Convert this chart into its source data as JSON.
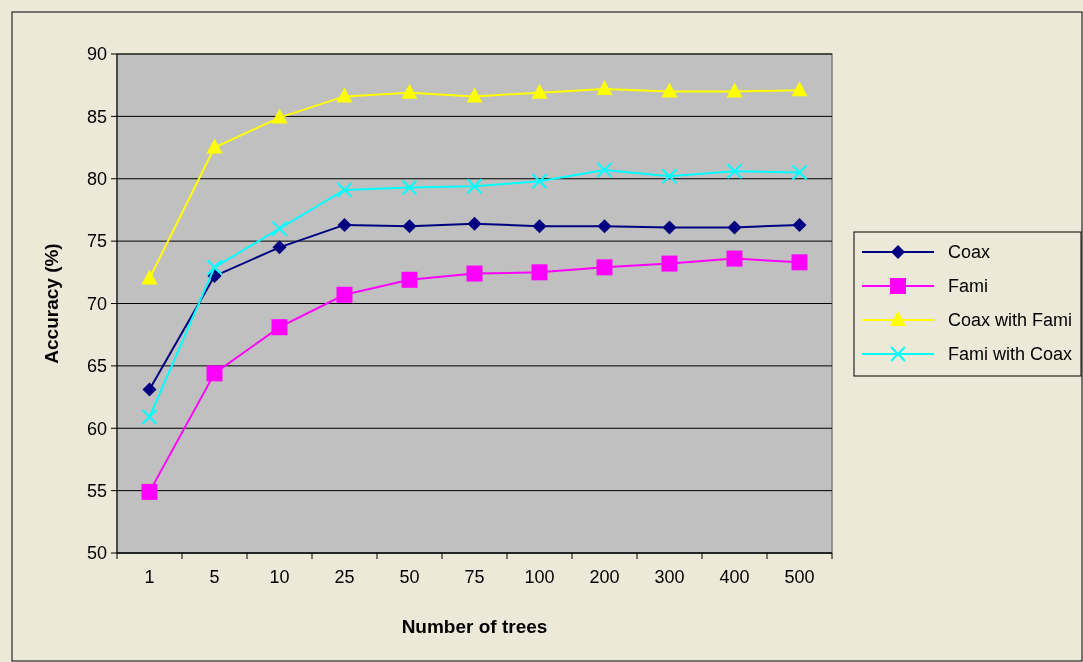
{
  "chart_data": {
    "type": "line",
    "xlabel": "Number of trees",
    "ylabel": "Accuracy (%)",
    "categories": [
      "1",
      "5",
      "10",
      "25",
      "50",
      "75",
      "100",
      "200",
      "300",
      "400",
      "500"
    ],
    "ylim": [
      50,
      90
    ],
    "yticks": [
      50,
      55,
      60,
      65,
      70,
      75,
      80,
      85,
      90
    ],
    "grid": "y",
    "legend": "right",
    "series": [
      {
        "name": "Coax",
        "color": "#000080",
        "marker": "diamond",
        "values": [
          63.1,
          72.2,
          74.5,
          76.3,
          76.2,
          76.4,
          76.2,
          76.2,
          76.1,
          76.1,
          76.3
        ]
      },
      {
        "name": "Fami",
        "color": "#ff00ff",
        "marker": "square",
        "values": [
          54.9,
          64.4,
          68.1,
          70.7,
          71.9,
          72.4,
          72.5,
          72.9,
          73.2,
          73.6,
          73.3
        ]
      },
      {
        "name": "Coax with Fami",
        "color": "#ffff00",
        "marker": "triangle",
        "values": [
          72.0,
          82.5,
          84.9,
          86.6,
          86.9,
          86.6,
          86.9,
          87.2,
          87.0,
          87.0,
          87.1
        ]
      },
      {
        "name": "Fami with Coax",
        "color": "#00ffff",
        "marker": "cross",
        "values": [
          60.9,
          72.9,
          76.0,
          79.1,
          79.3,
          79.4,
          79.8,
          80.7,
          80.2,
          80.6,
          80.5
        ]
      }
    ]
  }
}
